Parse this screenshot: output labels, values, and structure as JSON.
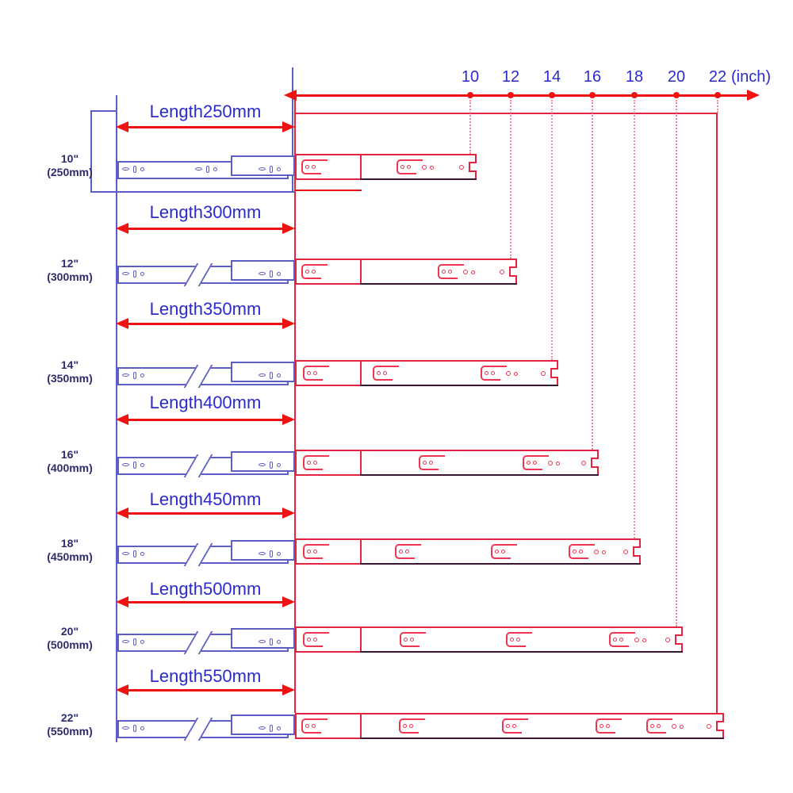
{
  "ruler": {
    "unit_label": "(inch)",
    "ticks": [
      {
        "label": "10"
      },
      {
        "label": "12"
      },
      {
        "label": "14"
      },
      {
        "label": "16"
      },
      {
        "label": "18"
      },
      {
        "label": "20"
      },
      {
        "label": "22"
      }
    ]
  },
  "rows": [
    {
      "inch_label": "10\"",
      "mm_label": "(250mm)",
      "length_label": "Length250mm",
      "length_mm": 250,
      "extended_inch": 10
    },
    {
      "inch_label": "12\"",
      "mm_label": "(300mm)",
      "length_label": "Length300mm",
      "length_mm": 300,
      "extended_inch": 12
    },
    {
      "inch_label": "14\"",
      "mm_label": "(350mm)",
      "length_label": "Length350mm",
      "length_mm": 350,
      "extended_inch": 14
    },
    {
      "inch_label": "16\"",
      "mm_label": "(400mm)",
      "length_label": "Length400mm",
      "length_mm": 400,
      "extended_inch": 16
    },
    {
      "inch_label": "18\"",
      "mm_label": "(450mm)",
      "length_label": "Length450mm",
      "length_mm": 450,
      "extended_inch": 18
    },
    {
      "inch_label": "20\"",
      "mm_label": "(500mm)",
      "length_label": "Length500mm",
      "length_mm": 500,
      "extended_inch": 20
    },
    {
      "inch_label": "22\"",
      "mm_label": "(550mm)",
      "length_label": "Length550mm",
      "length_mm": 550,
      "extended_inch": 22
    }
  ],
  "colors": {
    "blue_text": "#2a2acd",
    "navy_label": "#2c2c6e",
    "blue_outline": "#5d5dc6",
    "red": "#ee1312",
    "crimson_outline": "#e3233f",
    "clip_red": "#ef3552",
    "dotted_pink": "#f28a97",
    "dark_edge": "#3a1630"
  }
}
